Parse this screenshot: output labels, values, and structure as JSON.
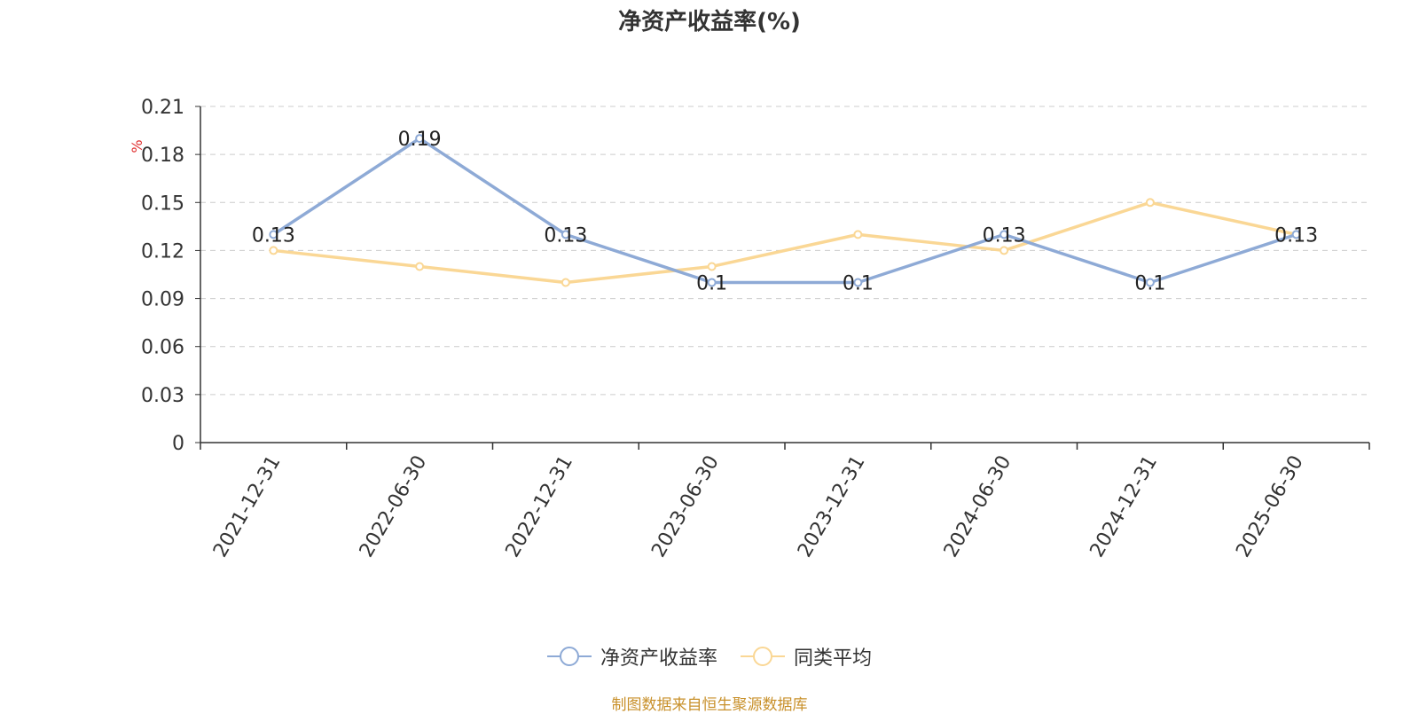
{
  "chart_data": {
    "type": "line",
    "title": "净资产收益率(%)",
    "ylabel": "%",
    "xlabel": "",
    "categories": [
      "2021-12-31",
      "2022-06-30",
      "2022-12-31",
      "2023-06-30",
      "2023-12-31",
      "2024-06-30",
      "2024-12-31",
      "2025-06-30"
    ],
    "ylim": [
      0,
      0.21
    ],
    "yticks": [
      "0",
      "0.03",
      "0.06",
      "0.09",
      "0.12",
      "0.15",
      "0.18",
      "0.21"
    ],
    "grid": true,
    "legend_position": "bottom",
    "series": [
      {
        "name": "净资产收益率",
        "color": "#8eaad6",
        "values": [
          0.13,
          0.19,
          0.13,
          0.1,
          0.1,
          0.13,
          0.1,
          0.13
        ],
        "labels": [
          "0.13",
          "0.19",
          "0.13",
          "0.1",
          "0.1",
          "0.13",
          "0.1",
          "0.13"
        ]
      },
      {
        "name": "同类平均",
        "color": "#fad795",
        "values": [
          0.12,
          0.11,
          0.1,
          0.11,
          0.13,
          0.12,
          0.15,
          0.13
        ]
      }
    ]
  },
  "footer": {
    "source": "制图数据来自恒生聚源数据库"
  }
}
